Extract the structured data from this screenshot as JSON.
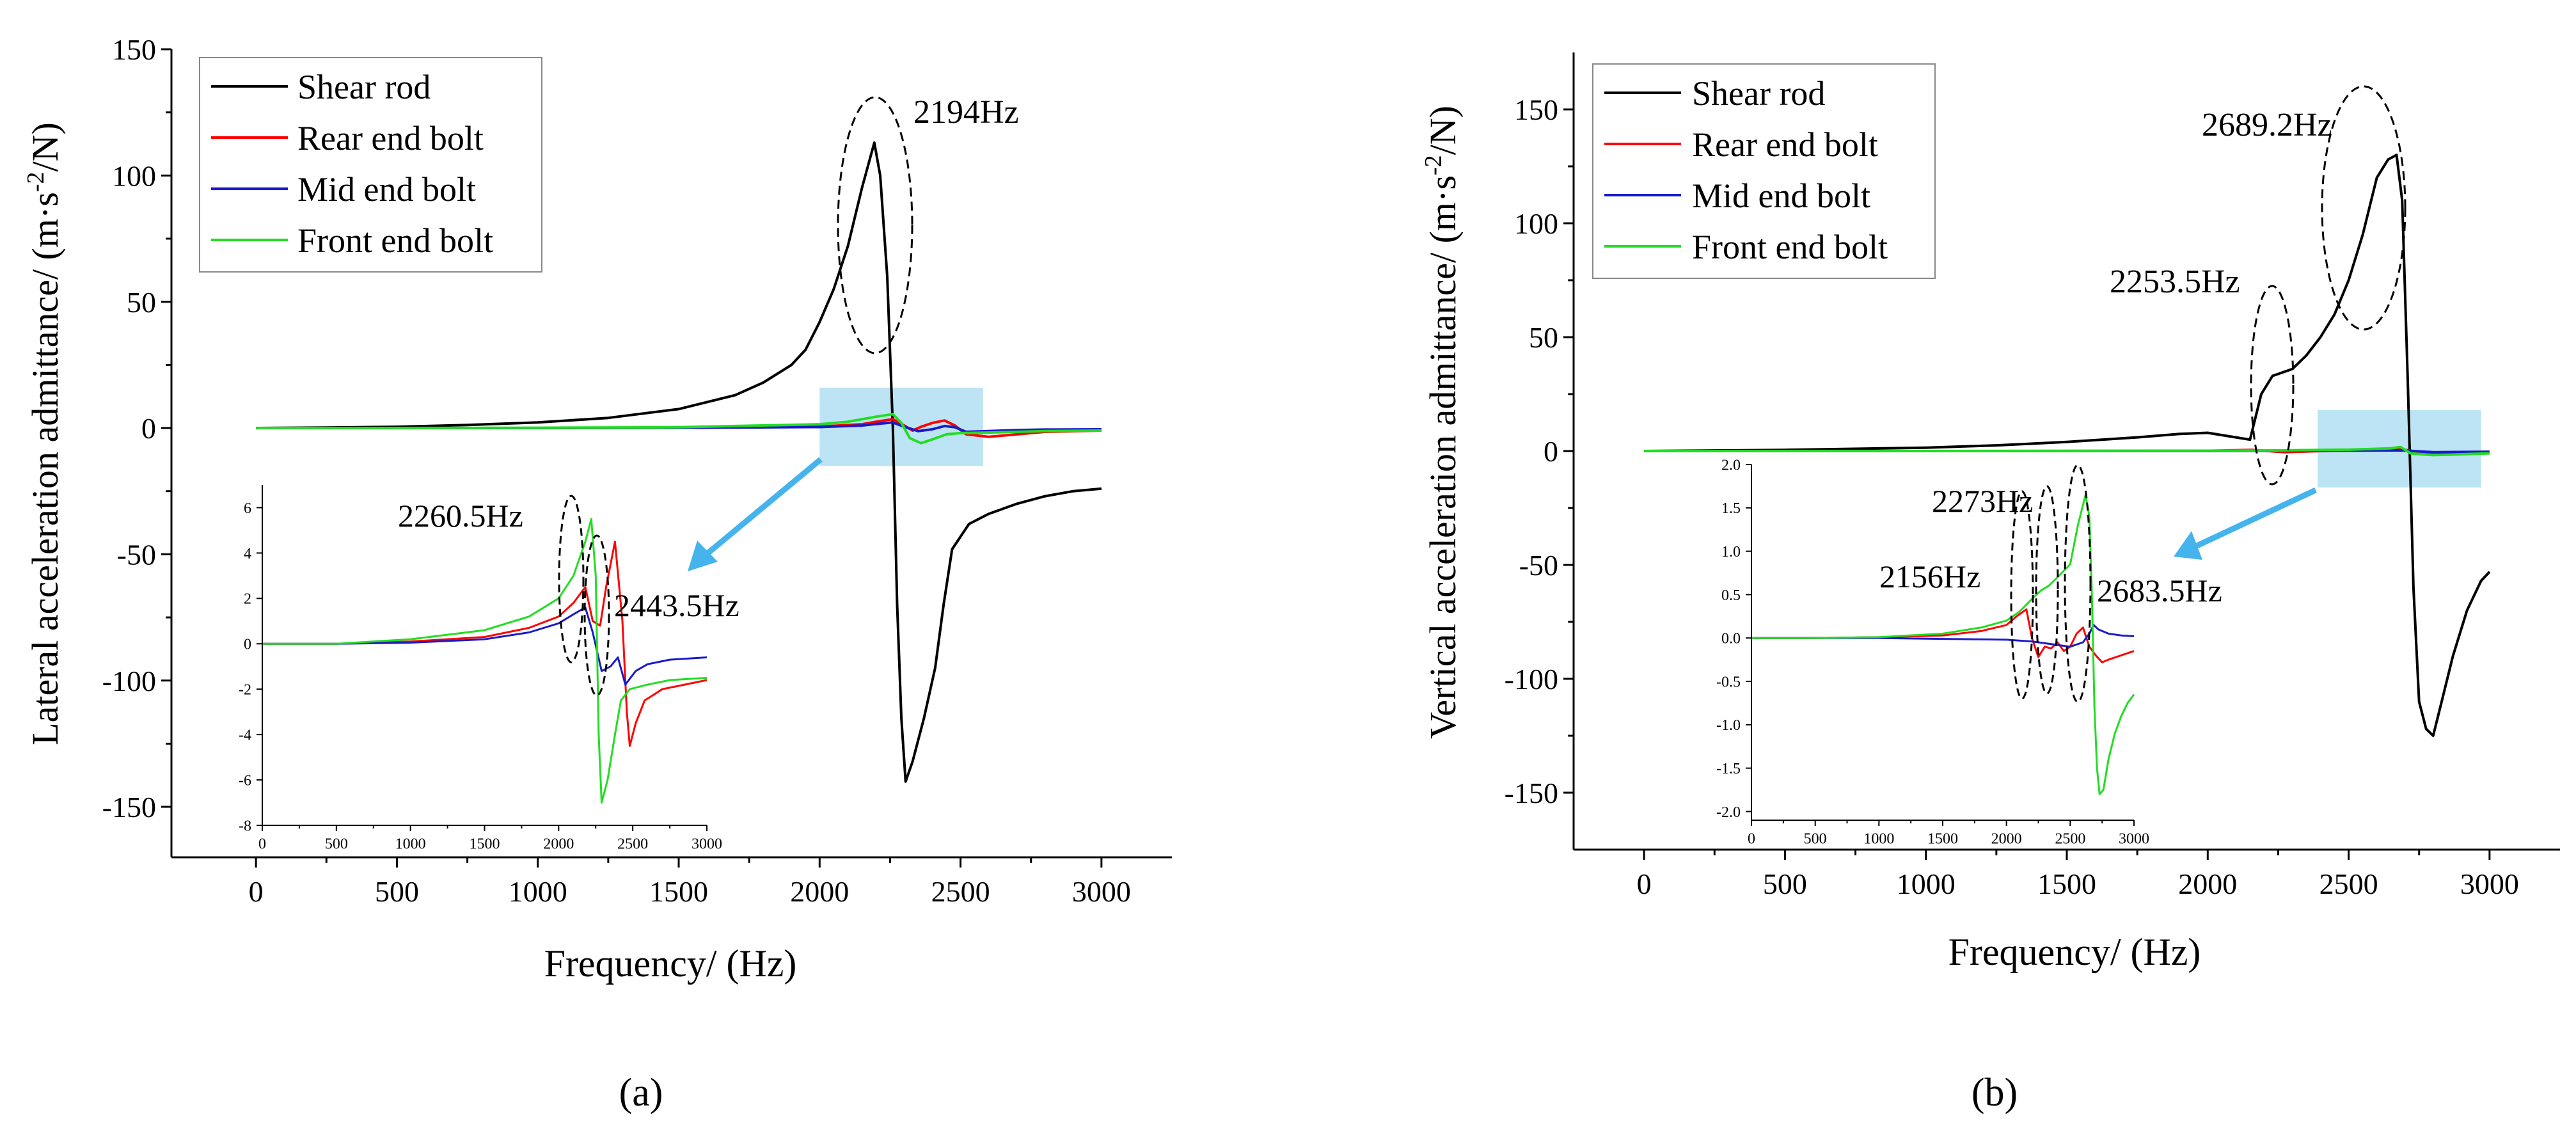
{
  "figure": {
    "panels": [
      "a",
      "b"
    ]
  },
  "chart_data": [
    {
      "type": "line",
      "panel_label": "(a)",
      "xlabel": "Frequency/ (Hz)",
      "ylabel_main": "Lateral acceleration admittance/ (m·s",
      "ylabel_sup": "-2",
      "ylabel_tail": "/N)",
      "xlim": [
        -300,
        3250
      ],
      "ylim": [
        -170,
        150
      ],
      "xticks": [
        0,
        500,
        1000,
        1500,
        2000,
        2500,
        3000
      ],
      "yticks": [
        -150,
        -100,
        -50,
        0,
        50,
        100,
        150
      ],
      "legend_position": "top-left",
      "series": [
        {
          "name": "Shear rod",
          "color": "#000000",
          "x": [
            0,
            250,
            500,
            750,
            1000,
            1250,
            1500,
            1700,
            1800,
            1900,
            1950,
            2000,
            2050,
            2100,
            2150,
            2194,
            2215,
            2240,
            2260,
            2275,
            2290,
            2305,
            2330,
            2370,
            2410,
            2440,
            2470,
            2530,
            2600,
            2700,
            2800,
            2900,
            3000
          ],
          "y": [
            0,
            0.2,
            0.5,
            1.2,
            2.2,
            4,
            7.5,
            13,
            18,
            25,
            31,
            42,
            55,
            72,
            95,
            113,
            100,
            60,
            0,
            -70,
            -115,
            -140,
            -132,
            -115,
            -95,
            -70,
            -48,
            -38,
            -34,
            -30,
            -27,
            -25,
            -24
          ]
        },
        {
          "name": "Rear end bolt",
          "color": "#ff0000",
          "x": [
            0,
            500,
            1000,
            1500,
            2000,
            2150,
            2200,
            2260,
            2300,
            2330,
            2360,
            2400,
            2443,
            2480,
            2520,
            2600,
            2700,
            2800,
            3000
          ],
          "y": [
            0,
            0,
            0,
            0.1,
            0.6,
            1.5,
            2.5,
            3.5,
            1,
            -1,
            0.5,
            2,
            3,
            1,
            -2.5,
            -3.5,
            -2.5,
            -1.5,
            -1
          ]
        },
        {
          "name": "Mid end bolt",
          "color": "#1a1acc",
          "x": [
            0,
            500,
            1000,
            1500,
            2000,
            2150,
            2200,
            2260,
            2300,
            2350,
            2400,
            2443,
            2480,
            2520,
            2600,
            2700,
            2800,
            3000
          ],
          "y": [
            0,
            0,
            0,
            0.1,
            0.4,
            1,
            1.6,
            2.2,
            0.5,
            -1.2,
            -0.5,
            0.8,
            0.3,
            -1.5,
            -1.2,
            -0.8,
            -0.6,
            -0.5
          ]
        },
        {
          "name": "Front end bolt",
          "color": "#22dd22",
          "x": [
            0,
            500,
            1000,
            1500,
            2000,
            2100,
            2200,
            2260,
            2290,
            2320,
            2360,
            2400,
            2450,
            2500,
            2600,
            2700,
            2800,
            3000
          ],
          "y": [
            0,
            0,
            0.1,
            0.3,
            1.5,
            2.5,
            4.5,
            5.5,
            2,
            -4,
            -6,
            -4.5,
            -2.5,
            -2,
            -1.8,
            -1.5,
            -1.2,
            -1
          ]
        }
      ],
      "annotations": [
        {
          "text": "2194Hz",
          "x": 2230,
          "y": 127
        },
        {
          "text": "2260.5Hz",
          "target": "inset"
        },
        {
          "text": "2443.5Hz",
          "target": "inset"
        }
      ],
      "highlight_box": {
        "x": [
          2000,
          2580
        ],
        "y": [
          -15,
          16
        ]
      },
      "inset": {
        "xlim": [
          0,
          3000
        ],
        "ylim": [
          -8,
          7
        ],
        "xticks": [
          0,
          500,
          1000,
          1500,
          2000,
          2500,
          3000
        ],
        "yticks": [
          -8,
          -6,
          -4,
          -2,
          0,
          2,
          4,
          6
        ],
        "series": [
          {
            "name": "Rear end bolt",
            "color": "#ff0000",
            "x": [
              0,
              500,
              1000,
              1500,
              1800,
              2000,
              2100,
              2180,
              2230,
              2280,
              2320,
              2380,
              2430,
              2460,
              2480,
              2520,
              2580,
              2700,
              2850,
              3000
            ],
            "y": [
              0,
              0,
              0.1,
              0.3,
              0.7,
              1.2,
              1.8,
              2.5,
              1,
              0.8,
              2.5,
              4.5,
              1,
              -3,
              -4.5,
              -3.5,
              -2.5,
              -2,
              -1.8,
              -1.6
            ]
          },
          {
            "name": "Mid end bolt",
            "color": "#1a1acc",
            "x": [
              0,
              500,
              1000,
              1500,
              1800,
              2000,
              2100,
              2180,
              2230,
              2290,
              2350,
              2400,
              2450,
              2520,
              2600,
              2750,
              3000
            ],
            "y": [
              0,
              0,
              0.05,
              0.2,
              0.5,
              0.9,
              1.3,
              1.6,
              0.5,
              -1.2,
              -1,
              -0.6,
              -1.8,
              -1.2,
              -0.9,
              -0.7,
              -0.6
            ]
          },
          {
            "name": "Front end bolt",
            "color": "#22dd22",
            "x": [
              0,
              500,
              1000,
              1500,
              1800,
              2000,
              2100,
              2180,
              2220,
              2250,
              2270,
              2290,
              2330,
              2380,
              2420,
              2480,
              2600,
              2750,
              3000
            ],
            "y": [
              0,
              0,
              0.2,
              0.6,
              1.2,
              2,
              3,
              4.5,
              5.5,
              3,
              -4,
              -7,
              -6,
              -4,
              -2.5,
              -2,
              -1.8,
              -1.6,
              -1.5
            ]
          }
        ]
      }
    },
    {
      "type": "line",
      "panel_label": "(b)",
      "xlabel": "Frequency/ (Hz)",
      "ylabel_main": "Vertical acceleration admittance/ (m·s",
      "ylabel_sup": "-2",
      "ylabel_tail": "/N)",
      "xlim": [
        -250,
        3250
      ],
      "ylim": [
        -175,
        175
      ],
      "xticks": [
        0,
        500,
        1000,
        1500,
        2000,
        2500,
        3000
      ],
      "yticks": [
        -150,
        -100,
        -50,
        0,
        50,
        100,
        150
      ],
      "legend_position": "top-left",
      "series": [
        {
          "name": "Shear rod",
          "color": "#000000",
          "x": [
            0,
            500,
            1000,
            1250,
            1500,
            1750,
            1900,
            2000,
            2100,
            2150,
            2190,
            2230,
            2253.5,
            2300,
            2350,
            2400,
            2450,
            2500,
            2550,
            2600,
            2640,
            2670,
            2690,
            2710,
            2730,
            2750,
            2775,
            2800,
            2830,
            2870,
            2920,
            2970,
            3000
          ],
          "y": [
            0,
            0.5,
            1.5,
            2.5,
            4,
            6,
            7.5,
            8,
            6,
            5,
            25,
            33,
            34,
            36,
            42,
            50,
            60,
            75,
            95,
            120,
            128,
            130,
            110,
            30,
            -60,
            -110,
            -122,
            -125,
            -110,
            -90,
            -70,
            -57,
            -53
          ]
        },
        {
          "name": "Rear end bolt",
          "color": "#ff0000",
          "x": [
            0,
            1000,
            2000,
            2156,
            2273,
            2500,
            2683.5,
            2800,
            3000
          ],
          "y": [
            0,
            0,
            0.1,
            0.5,
            -0.5,
            0.4,
            0.8,
            -1.2,
            -0.8
          ]
        },
        {
          "name": "Mid end bolt",
          "color": "#1a1acc",
          "x": [
            0,
            1000,
            2000,
            2500,
            2683.5,
            2800,
            3000
          ],
          "y": [
            0,
            0,
            0,
            0.2,
            0.3,
            -0.5,
            -0.3
          ]
        },
        {
          "name": "Front end bolt",
          "color": "#22dd22",
          "x": [
            0,
            1000,
            2000,
            2273,
            2500,
            2650,
            2683.5,
            2720,
            2800,
            3000
          ],
          "y": [
            0,
            0,
            0.1,
            0.3,
            0.6,
            1.2,
            1.8,
            -1,
            -1.8,
            -1
          ]
        }
      ],
      "annotations": [
        {
          "text": "2689.2Hz",
          "x": 2300,
          "y": 141
        },
        {
          "text": "2253.5Hz",
          "x": 2000,
          "y": 72
        },
        {
          "text": "2273Hz",
          "target": "inset"
        },
        {
          "text": "2156Hz",
          "target": "inset"
        },
        {
          "text": "2683.5Hz",
          "target": "inset"
        }
      ],
      "highlight_box": {
        "x": [
          2390,
          2970
        ],
        "y": [
          -16,
          18
        ]
      },
      "inset": {
        "xlim": [
          0,
          3000
        ],
        "ylim": [
          -2.1,
          2.0
        ],
        "xticks": [
          0,
          500,
          1000,
          1500,
          2000,
          2500,
          3000
        ],
        "yticks": [
          -2.0,
          -1.5,
          -1.0,
          -0.5,
          0.0,
          0.5,
          1.0,
          1.5,
          2.0
        ],
        "series": [
          {
            "name": "Rear end bolt",
            "color": "#ff0000",
            "x": [
              0,
              500,
              1000,
              1500,
              1800,
              2000,
              2080,
              2156,
              2200,
              2250,
              2300,
              2350,
              2400,
              2450,
              2500,
              2550,
              2600,
              2650,
              2700,
              2750,
              2800,
              2900,
              3000
            ],
            "y": [
              0,
              0,
              0.01,
              0.03,
              0.08,
              0.15,
              0.25,
              0.33,
              0,
              -0.22,
              -0.1,
              -0.12,
              -0.05,
              -0.15,
              -0.1,
              0.05,
              0.12,
              -0.1,
              -0.2,
              -0.28,
              -0.25,
              -0.2,
              -0.15
            ]
          },
          {
            "name": "Mid end bolt",
            "color": "#1a1acc",
            "x": [
              0,
              500,
              1000,
              1500,
              2000,
              2200,
              2400,
              2500,
              2600,
              2650,
              2683.5,
              2720,
              2800,
              2900,
              3000
            ],
            "y": [
              0,
              0,
              0,
              -0.01,
              -0.02,
              -0.04,
              -0.08,
              -0.1,
              -0.05,
              0.05,
              0.15,
              0.1,
              0.05,
              0.03,
              0.02
            ]
          },
          {
            "name": "Front end bolt",
            "color": "#22dd22",
            "x": [
              0,
              500,
              1000,
              1500,
              1800,
              2000,
              2100,
              2200,
              2273,
              2330,
              2400,
              2500,
              2560,
              2620,
              2650,
              2670,
              2690,
              2710,
              2730,
              2760,
              2800,
              2850,
              2900,
              2950,
              3000
            ],
            "y": [
              0,
              0,
              0.01,
              0.05,
              0.12,
              0.2,
              0.3,
              0.45,
              0.55,
              0.6,
              0.7,
              0.85,
              1.3,
              1.65,
              1.4,
              0.5,
              -0.8,
              -1.5,
              -1.8,
              -1.75,
              -1.4,
              -1.1,
              -0.9,
              -0.75,
              -0.65
            ]
          }
        ]
      }
    }
  ]
}
